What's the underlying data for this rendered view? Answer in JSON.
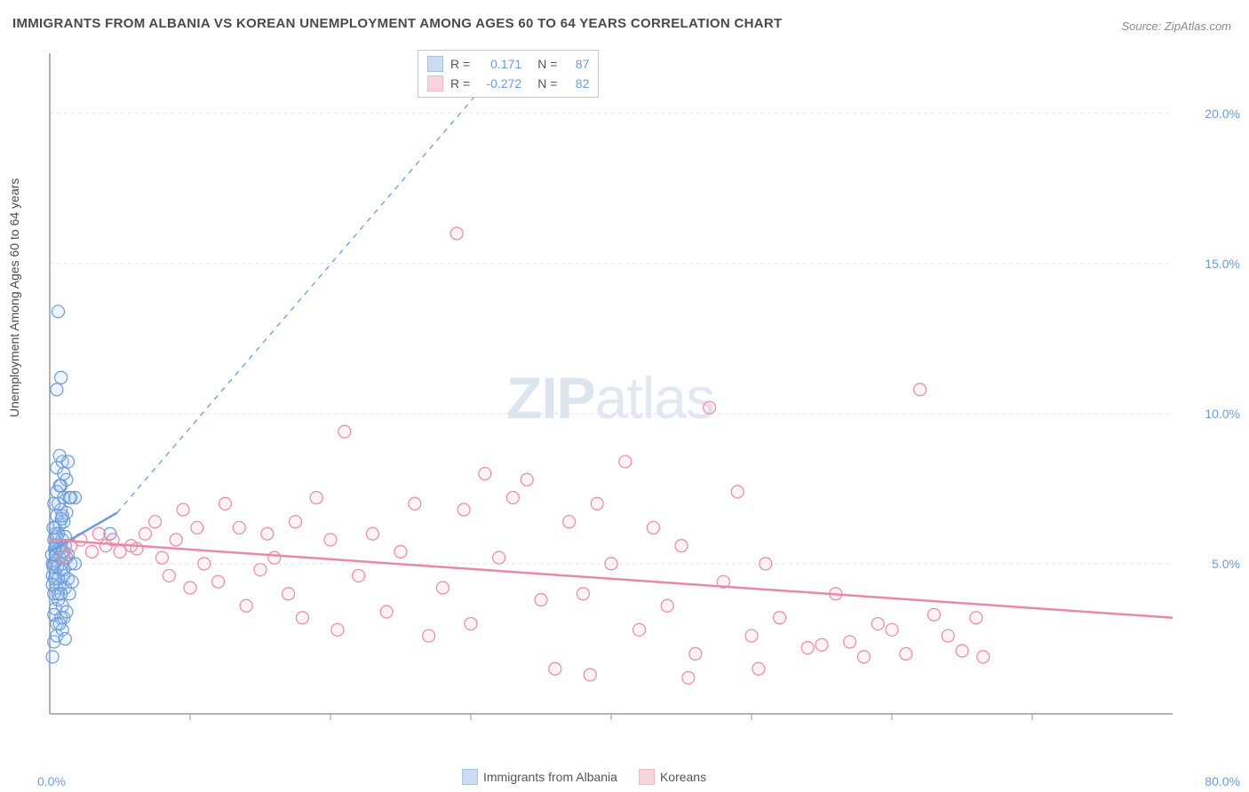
{
  "title": "IMMIGRANTS FROM ALBANIA VS KOREAN UNEMPLOYMENT AMONG AGES 60 TO 64 YEARS CORRELATION CHART",
  "source": "Source: ZipAtlas.com",
  "ylabel": "Unemployment Among Ages 60 to 64 years",
  "watermark_bold": "ZIP",
  "watermark_light": "atlas",
  "chart": {
    "type": "scatter",
    "background_color": "#ffffff",
    "grid_color": "#e4e4e4",
    "axis_color": "#9a9a9a",
    "tick_color": "#6b9bd8",
    "xlim": [
      0,
      80
    ],
    "ylim": [
      0,
      22
    ],
    "x_origin_label": "0.0%",
    "x_max_label": "80.0%",
    "y_ticks": [
      5.0,
      10.0,
      15.0,
      20.0
    ],
    "y_tick_labels": [
      "5.0%",
      "10.0%",
      "15.0%",
      "20.0%"
    ],
    "x_minor_ticks": [
      10,
      20,
      30,
      40,
      50,
      60,
      70
    ],
    "marker_radius": 7,
    "marker_stroke_width": 1.2,
    "marker_fill_opacity": 0.18,
    "series": [
      {
        "name": "Immigrants from Albania",
        "color_stroke": "#6b9bd8",
        "color_fill": "#a8c8ec",
        "R": "0.171",
        "N": "87",
        "trend": {
          "x1": 0,
          "y1": 5.4,
          "x2": 4.8,
          "y2": 6.7,
          "dash_ext_x2": 32,
          "dash_ext_y2": 21.5
        },
        "points": [
          [
            0.2,
            1.9
          ],
          [
            0.3,
            2.4
          ],
          [
            0.5,
            2.6
          ],
          [
            0.8,
            3.2
          ],
          [
            1.0,
            3.2
          ],
          [
            0.4,
            3.5
          ],
          [
            0.6,
            3.8
          ],
          [
            0.9,
            3.6
          ],
          [
            1.2,
            3.4
          ],
          [
            0.3,
            4.0
          ],
          [
            0.5,
            4.2
          ],
          [
            0.7,
            4.3
          ],
          [
            1.1,
            4.2
          ],
          [
            1.4,
            4.0
          ],
          [
            0.2,
            4.6
          ],
          [
            0.4,
            4.7
          ],
          [
            0.8,
            4.8
          ],
          [
            1.0,
            4.6
          ],
          [
            1.3,
            4.5
          ],
          [
            1.6,
            4.4
          ],
          [
            0.3,
            5.0
          ],
          [
            0.5,
            5.1
          ],
          [
            0.7,
            5.2
          ],
          [
            0.9,
            5.0
          ],
          [
            1.2,
            5.2
          ],
          [
            1.5,
            5.0
          ],
          [
            1.8,
            5.0
          ],
          [
            0.4,
            5.4
          ],
          [
            0.6,
            5.5
          ],
          [
            0.8,
            5.6
          ],
          [
            1.0,
            5.4
          ],
          [
            1.3,
            5.3
          ],
          [
            0.3,
            5.8
          ],
          [
            0.5,
            5.9
          ],
          [
            0.9,
            5.8
          ],
          [
            1.1,
            5.9
          ],
          [
            0.4,
            6.2
          ],
          [
            0.7,
            6.3
          ],
          [
            1.0,
            6.4
          ],
          [
            0.5,
            6.6
          ],
          [
            0.8,
            6.8
          ],
          [
            1.2,
            6.7
          ],
          [
            0.6,
            7.0
          ],
          [
            1.0,
            7.2
          ],
          [
            1.4,
            7.2
          ],
          [
            1.8,
            7.2
          ],
          [
            0.8,
            7.6
          ],
          [
            1.2,
            7.8
          ],
          [
            0.5,
            8.2
          ],
          [
            0.9,
            8.4
          ],
          [
            1.3,
            8.4
          ],
          [
            0.7,
            8.6
          ],
          [
            0.5,
            10.8
          ],
          [
            0.8,
            11.2
          ],
          [
            0.6,
            13.4
          ],
          [
            4.3,
            6.0
          ],
          [
            0.2,
            5.0
          ],
          [
            0.15,
            5.3
          ],
          [
            0.4,
            5.3
          ],
          [
            0.25,
            4.9
          ],
          [
            0.35,
            4.5
          ],
          [
            0.6,
            4.5
          ],
          [
            0.5,
            3.0
          ],
          [
            0.9,
            2.8
          ],
          [
            1.1,
            2.5
          ],
          [
            0.2,
            4.3
          ],
          [
            0.3,
            3.3
          ],
          [
            0.7,
            3.0
          ],
          [
            0.4,
            6.0
          ],
          [
            0.6,
            6.0
          ],
          [
            0.85,
            6.5
          ],
          [
            1.0,
            8.0
          ],
          [
            0.5,
            7.4
          ],
          [
            0.3,
            7.0
          ],
          [
            0.9,
            6.6
          ],
          [
            0.7,
            5.5
          ],
          [
            1.1,
            5.6
          ],
          [
            0.45,
            5.6
          ],
          [
            0.6,
            4.0
          ],
          [
            0.8,
            4.0
          ],
          [
            0.55,
            4.9
          ],
          [
            0.35,
            5.5
          ],
          [
            0.25,
            6.2
          ],
          [
            0.9,
            5.4
          ],
          [
            1.0,
            4.8
          ],
          [
            1.5,
            7.2
          ],
          [
            0.7,
            7.6
          ]
        ]
      },
      {
        "name": "Koreans",
        "color_stroke": "#e88aa4",
        "color_fill": "#f5b8c8",
        "R": "-0.272",
        "N": "82",
        "trend": {
          "x1": 0,
          "y1": 5.8,
          "x2": 80,
          "y2": 3.2
        },
        "points": [
          [
            1.5,
            5.6
          ],
          [
            2.2,
            5.8
          ],
          [
            3.0,
            5.4
          ],
          [
            3.5,
            6.0
          ],
          [
            4.0,
            5.6
          ],
          [
            4.5,
            5.8
          ],
          [
            5.0,
            5.4
          ],
          [
            5.8,
            5.6
          ],
          [
            6.2,
            5.5
          ],
          [
            6.8,
            6.0
          ],
          [
            7.5,
            6.4
          ],
          [
            8.0,
            5.2
          ],
          [
            8.5,
            4.6
          ],
          [
            9.0,
            5.8
          ],
          [
            9.5,
            6.8
          ],
          [
            10.0,
            4.2
          ],
          [
            10.5,
            6.2
          ],
          [
            11.0,
            5.0
          ],
          [
            12.0,
            4.4
          ],
          [
            12.5,
            7.0
          ],
          [
            13.5,
            6.2
          ],
          [
            14.0,
            3.6
          ],
          [
            15.0,
            4.8
          ],
          [
            15.5,
            6.0
          ],
          [
            16.0,
            5.2
          ],
          [
            17.0,
            4.0
          ],
          [
            17.5,
            6.4
          ],
          [
            18.0,
            3.2
          ],
          [
            19.0,
            7.2
          ],
          [
            20.0,
            5.8
          ],
          [
            20.5,
            2.8
          ],
          [
            21.0,
            9.4
          ],
          [
            22.0,
            4.6
          ],
          [
            23.0,
            6.0
          ],
          [
            24.0,
            3.4
          ],
          [
            25.0,
            5.4
          ],
          [
            26.0,
            7.0
          ],
          [
            27.0,
            2.6
          ],
          [
            28.0,
            4.2
          ],
          [
            29.0,
            16.0
          ],
          [
            29.5,
            6.8
          ],
          [
            30.0,
            3.0
          ],
          [
            31.0,
            8.0
          ],
          [
            32.0,
            5.2
          ],
          [
            33.0,
            7.2
          ],
          [
            34.0,
            7.8
          ],
          [
            35.0,
            3.8
          ],
          [
            36.0,
            1.5
          ],
          [
            37.0,
            6.4
          ],
          [
            38.0,
            4.0
          ],
          [
            38.5,
            1.3
          ],
          [
            39.0,
            7.0
          ],
          [
            40.0,
            5.0
          ],
          [
            41.0,
            8.4
          ],
          [
            42.0,
            2.8
          ],
          [
            43.0,
            6.2
          ],
          [
            44.0,
            3.6
          ],
          [
            45.0,
            5.6
          ],
          [
            45.5,
            1.2
          ],
          [
            46.0,
            2.0
          ],
          [
            47.0,
            10.2
          ],
          [
            48.0,
            4.4
          ],
          [
            49.0,
            7.4
          ],
          [
            50.0,
            2.6
          ],
          [
            50.5,
            1.5
          ],
          [
            51.0,
            5.0
          ],
          [
            52.0,
            3.2
          ],
          [
            54.0,
            2.2
          ],
          [
            55.0,
            2.3
          ],
          [
            56.0,
            4.0
          ],
          [
            57.0,
            2.4
          ],
          [
            58.0,
            1.9
          ],
          [
            59.0,
            3.0
          ],
          [
            60.0,
            2.8
          ],
          [
            61.0,
            2.0
          ],
          [
            62.0,
            10.8
          ],
          [
            63.0,
            3.3
          ],
          [
            64.0,
            2.6
          ],
          [
            65.0,
            2.1
          ],
          [
            66.0,
            3.2
          ],
          [
            66.5,
            1.9
          ],
          [
            1.0,
            5.2
          ]
        ]
      }
    ],
    "bottom_legend": [
      {
        "label": "Immigrants from Albania",
        "fill": "#a8c8ec",
        "stroke": "#6b9bd8"
      },
      {
        "label": "Koreans",
        "fill": "#f5b8c8",
        "stroke": "#e88aa4"
      }
    ]
  }
}
